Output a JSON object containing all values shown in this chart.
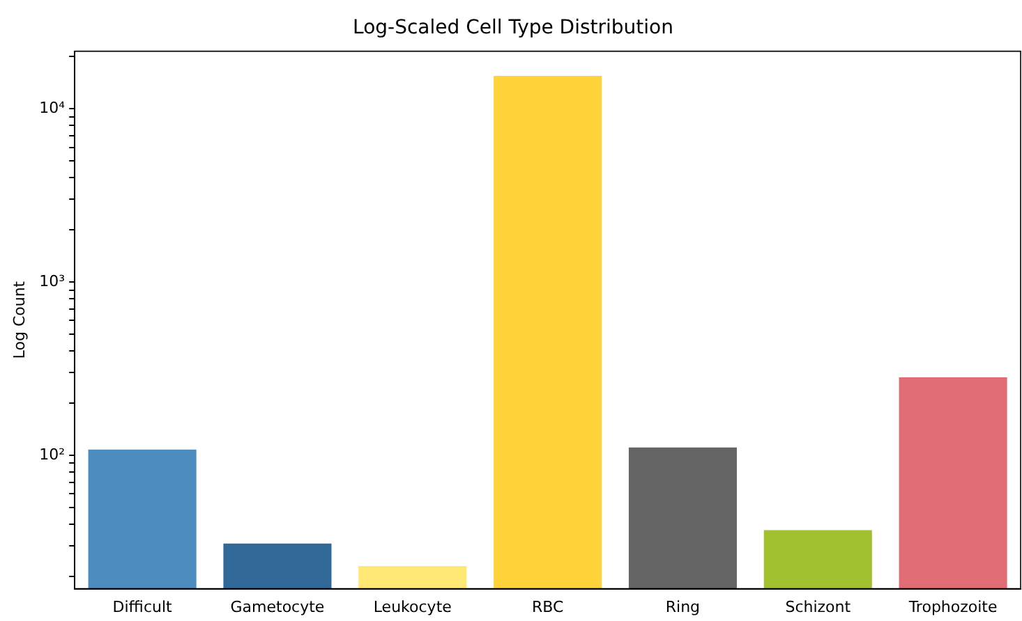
{
  "chart_data": {
    "type": "bar",
    "title": "Log-Scaled Cell Type Distribution",
    "ylabel": "Log Count",
    "categories": [
      "Difficult",
      "Gametocyte",
      "Leukocyte",
      "RBC",
      "Ring",
      "Schizont",
      "Trophozoite"
    ],
    "values": [
      108,
      31,
      23,
      15500,
      111,
      37,
      282
    ],
    "colors": [
      "#4b8bbe",
      "#306998",
      "#ffe873",
      "#ffd43b",
      "#646464",
      "#a0c030",
      "#e06c75"
    ],
    "log": "y",
    "ylim": [
      17,
      21500
    ],
    "yticks": [
      {
        "value": 20,
        "label": null
      },
      {
        "value": 30,
        "label": null
      },
      {
        "value": 40,
        "label": null
      },
      {
        "value": 50,
        "label": null
      },
      {
        "value": 60,
        "label": null
      },
      {
        "value": 70,
        "label": null
      },
      {
        "value": 80,
        "label": null
      },
      {
        "value": 90,
        "label": null
      },
      {
        "value": 100,
        "label": "10²"
      },
      {
        "value": 200,
        "label": null
      },
      {
        "value": 300,
        "label": null
      },
      {
        "value": 400,
        "label": null
      },
      {
        "value": 500,
        "label": null
      },
      {
        "value": 600,
        "label": null
      },
      {
        "value": 700,
        "label": null
      },
      {
        "value": 800,
        "label": null
      },
      {
        "value": 900,
        "label": null
      },
      {
        "value": 1000,
        "label": "10³"
      },
      {
        "value": 2000,
        "label": null
      },
      {
        "value": 3000,
        "label": null
      },
      {
        "value": 4000,
        "label": null
      },
      {
        "value": 5000,
        "label": null
      },
      {
        "value": 6000,
        "label": null
      },
      {
        "value": 7000,
        "label": null
      },
      {
        "value": 8000,
        "label": null
      },
      {
        "value": 9000,
        "label": null
      },
      {
        "value": 10000,
        "label": "10⁴"
      },
      {
        "value": 20000,
        "label": null
      }
    ],
    "grid": false,
    "legend": false
  }
}
